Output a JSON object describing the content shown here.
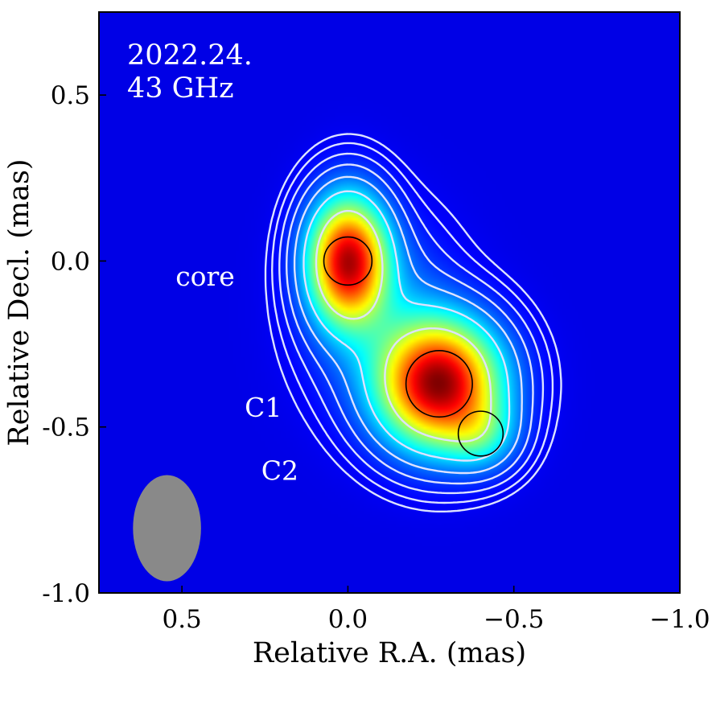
{
  "chart_data": {
    "type": "heatmap",
    "epoch_label": "2022.24.",
    "frequency_label": "43 GHz",
    "xlabel": "Relative R.A. (mas)",
    "ylabel": "Relative Decl. (mas)",
    "xlim": [
      0.75,
      -1.0
    ],
    "ylim": [
      -1.0,
      0.75
    ],
    "x_reversed": true,
    "xticks": [
      0.5,
      0.0,
      -0.5,
      -1.0
    ],
    "xtick_labels": [
      "0.5",
      "0.0",
      "−0.5",
      "−1.0"
    ],
    "yticks": [
      0.5,
      0.0,
      -0.5,
      -1.0
    ],
    "ytick_labels": [
      "0.5",
      "0.0",
      "-0.5",
      "-1.0"
    ],
    "colormap": "jet",
    "background_color": "#0a12c8",
    "contour_color": "#dde2ff",
    "contour_levels": [
      0.006,
      0.012,
      0.025,
      0.05,
      0.1,
      0.2,
      0.42
    ],
    "emission_sources": [
      {
        "x": 0.0,
        "y": 0.0,
        "sx": 0.075,
        "sy": 0.12,
        "amp": 0.92
      },
      {
        "x": -0.275,
        "y": -0.37,
        "sx": 0.115,
        "sy": 0.12,
        "amp": 1.0
      },
      {
        "x": -0.4,
        "y": -0.52,
        "sx": 0.07,
        "sy": 0.07,
        "amp": 0.2
      },
      {
        "x": -0.1,
        "y": -0.17,
        "sx": 0.13,
        "sy": 0.17,
        "amp": 0.12
      }
    ],
    "components": [
      {
        "name": "core",
        "x": 0.0,
        "y": 0.0,
        "diameter": 0.145,
        "label_x": 0.43,
        "label_y": -0.045
      },
      {
        "name": "C1",
        "x": -0.275,
        "y": -0.37,
        "diameter": 0.2,
        "label_x": 0.255,
        "label_y": -0.44
      },
      {
        "name": "C2",
        "x": -0.4,
        "y": -0.52,
        "diameter": 0.135,
        "label_x": 0.205,
        "label_y": -0.63
      }
    ],
    "beam": {
      "x": 0.545,
      "y": -0.805,
      "major": 0.32,
      "minor": 0.205,
      "pa_deg": 0,
      "color": "#898989"
    }
  }
}
